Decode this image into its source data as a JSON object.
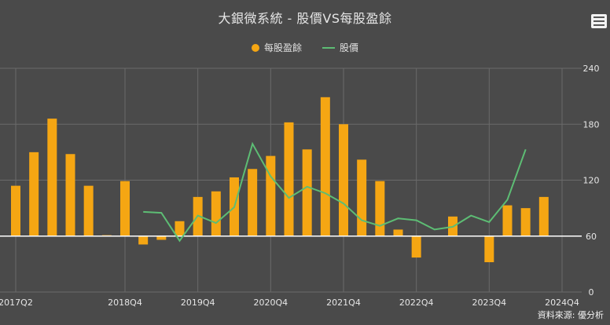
{
  "colors": {
    "background": "#4a4a4a",
    "eps_bar": "#f5a613",
    "price_line": "#5dbd74",
    "grid": "#6a6a6a",
    "zero_line": "#ffffff"
  },
  "menu": {
    "icon": "hamburger-menu-icon"
  },
  "source_text": "資料來源: 優分析",
  "chart_data": {
    "type": "bar",
    "title": "大銀微系統 - 股價VS每股盈餘",
    "legend_position": "top-center",
    "grid": true,
    "categories": [
      "2017Q2",
      "2017Q3",
      "2017Q4",
      "2018Q1",
      "2018Q2",
      "2018Q3",
      "2018Q4",
      "2019Q1",
      "2019Q2",
      "2019Q3",
      "2019Q4",
      "2020Q1",
      "2020Q2",
      "2020Q3",
      "2020Q4",
      "2021Q1",
      "2021Q2",
      "2021Q3",
      "2021Q4",
      "2022Q1",
      "2022Q2",
      "2022Q3",
      "2022Q4",
      "2023Q1",
      "2023Q2",
      "2023Q3",
      "2023Q4",
      "2024Q1",
      "2024Q2",
      "2024Q3",
      "2024Q4"
    ],
    "x_tick_labels": [
      "2017Q2",
      "2018Q4",
      "2019Q4",
      "2020Q4",
      "2021Q4",
      "2022Q4",
      "2023Q4",
      "2024Q4"
    ],
    "x_tick_categories": [
      "2017Q2",
      "2018Q4",
      "2019Q4",
      "2020Q4",
      "2021Q4",
      "2022Q4",
      "2023Q4",
      "2024Q4"
    ],
    "series": [
      {
        "name": "每股盈餘",
        "type": "bar",
        "color": "#f5a613",
        "values": [
          114,
          150,
          186,
          148,
          114,
          61,
          119,
          51,
          56,
          76,
          102,
          108,
          123,
          132,
          146,
          182,
          153,
          209,
          180,
          142,
          119,
          67,
          37,
          null,
          81,
          null,
          32,
          93,
          90,
          102,
          null
        ]
      },
      {
        "name": "股價",
        "type": "line",
        "color": "#5dbd74",
        "values": [
          null,
          null,
          null,
          null,
          null,
          null,
          null,
          86,
          85,
          55,
          82,
          74,
          91,
          159,
          124,
          101,
          113,
          106,
          95,
          77,
          71,
          79,
          77,
          67,
          70,
          82,
          75,
          99,
          153,
          null,
          null
        ]
      }
    ],
    "y_axis": {
      "position": "right",
      "min": 0,
      "max": 240,
      "ticks": [
        0,
        60,
        120,
        180,
        240
      ],
      "zero_line_value": 60
    }
  }
}
